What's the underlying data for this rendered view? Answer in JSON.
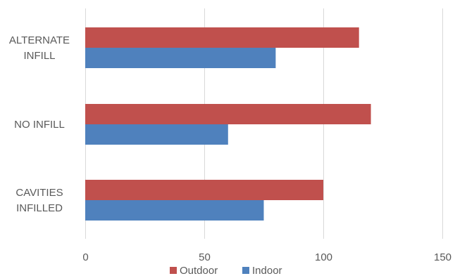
{
  "chart_data": {
    "type": "bar",
    "orientation": "horizontal",
    "categories": [
      [
        "ALTERNATE",
        "INFILL"
      ],
      [
        "NO INFILL"
      ],
      [
        "CAVITIES",
        "INFILLED"
      ]
    ],
    "series": [
      {
        "name": "Outdoor",
        "color": "#c0504d",
        "values": [
          115,
          120,
          100
        ]
      },
      {
        "name": "Indoor",
        "color": "#4f81bd",
        "values": [
          80,
          60,
          75
        ]
      }
    ],
    "xlim": [
      0,
      150
    ],
    "xticks": [
      0,
      50,
      100,
      150
    ],
    "grid": true,
    "legend_position": "bottom"
  }
}
